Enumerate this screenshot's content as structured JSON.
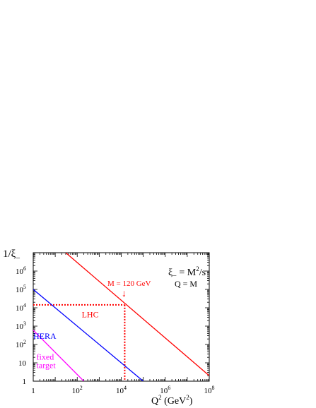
{
  "chart_data": {
    "type": "line",
    "x_scale": "log",
    "y_scale": "log",
    "xlim": [
      1,
      100000000
    ],
    "ylim": [
      1,
      10000000
    ],
    "xlabel": "Q",
    "xlabel_sup": "2",
    "xlabel_units": "(GeV",
    "xlabel_units_sup": "2",
    "xlabel_units_close": ")",
    "ylabel": "1/ξ",
    "ylabel_sub": "−",
    "x_ticks": [
      {
        "value": 1,
        "base": "1",
        "exp": ""
      },
      {
        "value": 100,
        "base": "10",
        "exp": "2"
      },
      {
        "value": 10000,
        "base": "10",
        "exp": "4"
      },
      {
        "value": 1000000,
        "base": "10",
        "exp": "6"
      },
      {
        "value": 100000000,
        "base": "10",
        "exp": "8"
      }
    ],
    "y_ticks": [
      {
        "value": 1,
        "base": "1",
        "exp": ""
      },
      {
        "value": 10,
        "base": "10",
        "exp": ""
      },
      {
        "value": 100,
        "base": "10",
        "exp": "2"
      },
      {
        "value": 1000,
        "base": "10",
        "exp": "3"
      },
      {
        "value": 10000,
        "base": "10",
        "exp": "4"
      },
      {
        "value": 100000,
        "base": "10",
        "exp": "5"
      },
      {
        "value": 1000000,
        "base": "10",
        "exp": "6"
      }
    ],
    "series": [
      {
        "name": "LHC",
        "color": "#ff0000",
        "points": [
          [
            30,
            10000000
          ],
          [
            100000000,
            2
          ]
        ]
      },
      {
        "name": "HERA",
        "color": "#0000ff",
        "points": [
          [
            1,
            100000
          ],
          [
            100000,
            1
          ]
        ]
      },
      {
        "name": "fixed target",
        "color": "#ff00ff",
        "points": [
          [
            1,
            600
          ],
          [
            200,
            1
          ]
        ]
      }
    ],
    "series_labels": [
      {
        "lines": [
          "LHC"
        ],
        "color": "#ff0000",
        "x": 160,
        "y": 3000
      },
      {
        "lines": [
          "HERA"
        ],
        "color": "#0000ff",
        "x": 1,
        "y": 200
      },
      {
        "lines": [
          "fixed",
          "target"
        ],
        "color": "#ff00ff",
        "x": 1.4,
        "y": 15
      }
    ],
    "reference": {
      "x": 14400,
      "y": 14400,
      "color": "#ff0000"
    },
    "annotations": {
      "m_label": "M = 120 GeV",
      "m_arrow": "↓",
      "xi_def_lhs": "ξ",
      "xi_def_sub": "−",
      "xi_def_mid": " = M",
      "xi_def_sup": "2",
      "xi_def_rhs": "/s",
      "q_def": "Q = M"
    }
  }
}
